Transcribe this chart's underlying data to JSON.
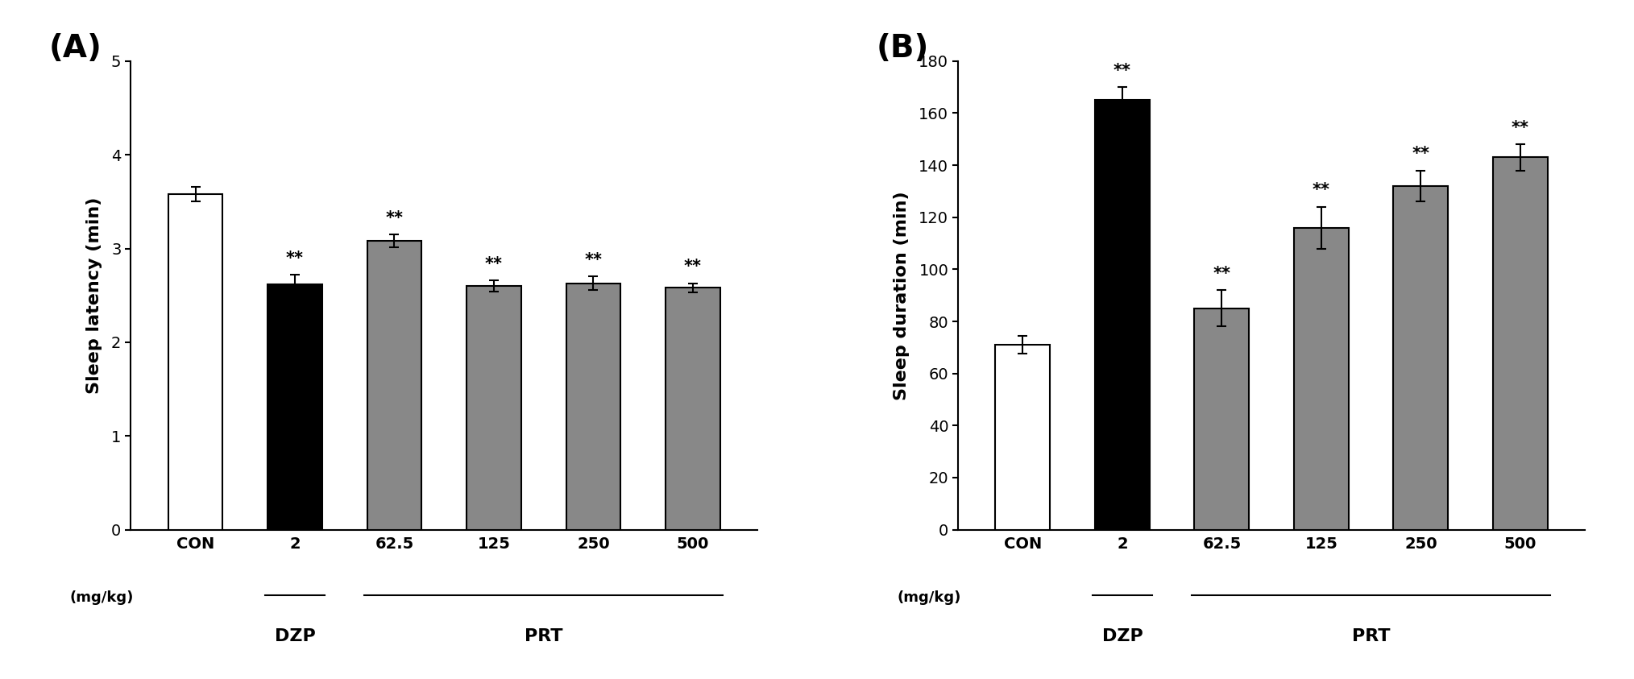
{
  "panel_A": {
    "title": "(A)",
    "ylabel": "Sleep latency (min)",
    "ylim": [
      0,
      5
    ],
    "yticks": [
      0,
      1,
      2,
      3,
      4,
      5
    ],
    "categories": [
      "CON",
      "2",
      "62.5",
      "125",
      "250",
      "500"
    ],
    "values": [
      3.58,
      2.62,
      3.08,
      2.6,
      2.63,
      2.58
    ],
    "errors": [
      0.08,
      0.1,
      0.07,
      0.06,
      0.07,
      0.05
    ],
    "colors": [
      "#ffffff",
      "#000000",
      "#888888",
      "#888888",
      "#888888",
      "#888888"
    ],
    "significance": [
      false,
      true,
      true,
      true,
      true,
      true
    ]
  },
  "panel_B": {
    "title": "(B)",
    "ylabel": "Sleep duration (min)",
    "ylim": [
      0,
      180
    ],
    "yticks": [
      0,
      20,
      40,
      60,
      80,
      100,
      120,
      140,
      160,
      180
    ],
    "categories": [
      "CON",
      "2",
      "62.5",
      "125",
      "250",
      "500"
    ],
    "values": [
      71.0,
      165.0,
      85.0,
      116.0,
      132.0,
      143.0
    ],
    "errors": [
      3.5,
      5.0,
      7.0,
      8.0,
      6.0,
      5.0
    ],
    "colors": [
      "#ffffff",
      "#000000",
      "#888888",
      "#888888",
      "#888888",
      "#888888"
    ],
    "significance": [
      false,
      true,
      true,
      true,
      true,
      true
    ]
  },
  "bar_width": 0.55,
  "sig_marker": "**",
  "sig_fontsize": 15,
  "axis_label_fontsize": 16,
  "tick_fontsize": 14,
  "panel_label_fontsize": 28,
  "group_label_fontsize": 16,
  "category_fontsize": 14,
  "mgkg_fontsize": 13,
  "background_color": "#ffffff"
}
